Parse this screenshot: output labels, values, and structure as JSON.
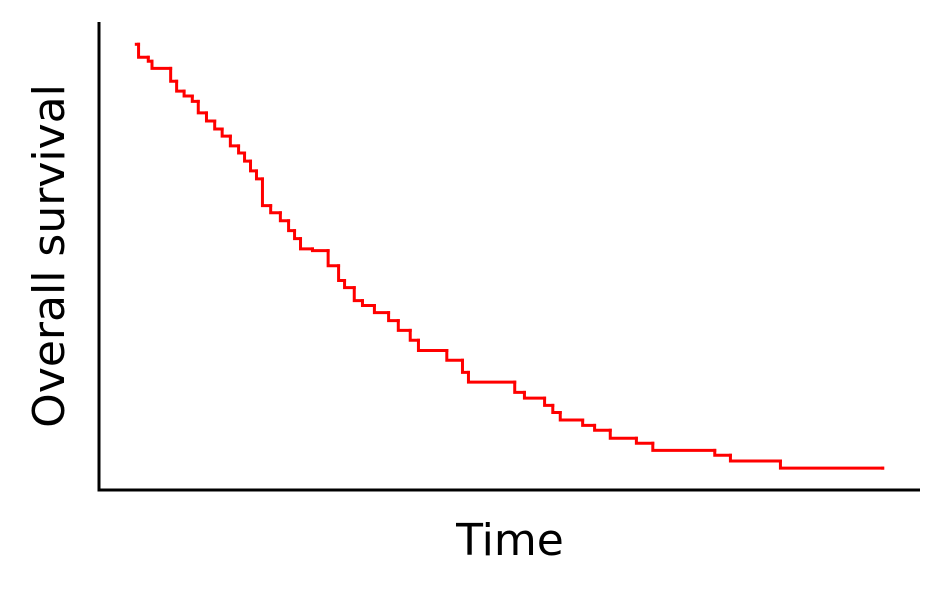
{
  "chart_data": {
    "type": "step",
    "x_label": "Time",
    "y_label": "Overall survival",
    "xlim": [
      -5,
      105
    ],
    "ylim": [
      0,
      1.05
    ],
    "series": [
      {
        "color": "#ff0000",
        "x": [
          0,
          0.3,
          1.6,
          2.1,
          4.6,
          5.4,
          6.4,
          7.5,
          8.3,
          9.4,
          10.5,
          11.5,
          12.6,
          13.7,
          14.5,
          15.3,
          16.1,
          16.9,
          18.0,
          19.3,
          20.4,
          21.2,
          22.0,
          23.6,
          25.7,
          27.1,
          27.9,
          29.2,
          30.3,
          31.9,
          33.8,
          35.1,
          36.7,
          37.8,
          41.6,
          43.7,
          44.5,
          50.7,
          52.0,
          54.7,
          55.8,
          56.8,
          59.8,
          61.4,
          63.5,
          67.0,
          69.2,
          77.5,
          79.6,
          86.3,
          100
        ],
        "values": [
          1.0,
          0.971,
          0.962,
          0.946,
          0.917,
          0.895,
          0.884,
          0.872,
          0.846,
          0.828,
          0.81,
          0.794,
          0.772,
          0.756,
          0.738,
          0.716,
          0.698,
          0.638,
          0.622,
          0.604,
          0.582,
          0.564,
          0.541,
          0.537,
          0.503,
          0.47,
          0.454,
          0.425,
          0.414,
          0.398,
          0.38,
          0.358,
          0.336,
          0.313,
          0.291,
          0.264,
          0.242,
          0.219,
          0.206,
          0.19,
          0.174,
          0.157,
          0.145,
          0.134,
          0.116,
          0.105,
          0.089,
          0.078,
          0.065,
          0.049,
          0.049
        ]
      }
    ]
  }
}
